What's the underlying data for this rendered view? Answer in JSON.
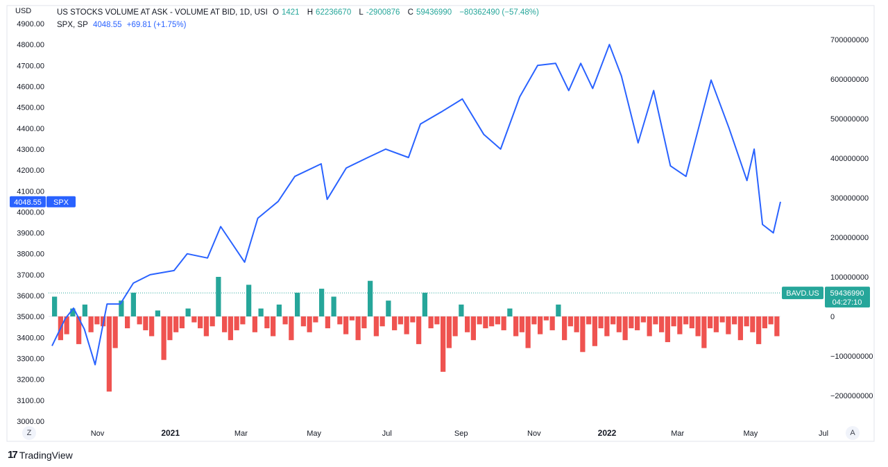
{
  "header": {
    "currency_label": "USD",
    "study_title": "US STOCKS VOLUME AT ASK - VOLUME AT BID, 1D, USI",
    "o_label": "O",
    "o_value": "1421",
    "h_label": "H",
    "h_value": "62236670",
    "l_label": "L",
    "l_value": "-2900876",
    "c_label": "C",
    "c_value": "59436990",
    "change": "−80362490 (−57.48%)",
    "spx_title": "SPX, SP",
    "spx_value": "4048.55",
    "spx_change": "+69.81 (+1.75%)"
  },
  "footer": {
    "brand": "TradingView",
    "left_button": "Z",
    "right_button": "A"
  },
  "colors": {
    "line": "#2962ff",
    "up": "#26a69a",
    "down": "#ef5350",
    "grid": "#f0f3fa"
  },
  "chart_data": {
    "type": "line",
    "x_tick_labels": [
      "Nov",
      "2021",
      "Mar",
      "May",
      "Jul",
      "Sep",
      "Nov",
      "2022",
      "Mar",
      "May",
      "Jul"
    ],
    "left_axis": {
      "ticks": [
        "4900.00",
        "4800.00",
        "4700.00",
        "4600.00",
        "4500.00",
        "4400.00",
        "4300.00",
        "4200.00",
        "4100.00",
        "4000.00",
        "3900.00",
        "3800.00",
        "3700.00",
        "3600.00",
        "3500.00",
        "3400.00",
        "3300.00",
        "3200.00",
        "3100.00",
        "3000.00"
      ],
      "range": [
        3000,
        4900
      ]
    },
    "right_axis": {
      "ticks": [
        "700000000",
        "600000000",
        "500000000",
        "400000000",
        "300000000",
        "200000000",
        "100000000",
        "0",
        "−100000000",
        "−200000000"
      ],
      "range": [
        -270000000,
        710000000
      ]
    },
    "x_range": [
      "2020-09-24",
      "2022-05-26"
    ],
    "spx_line": {
      "name": "SPX",
      "last_label": "4048.55",
      "dates": [
        "2020-09-24",
        "2020-10-05",
        "2020-10-12",
        "2020-10-21",
        "2020-10-30",
        "2020-11-09",
        "2020-11-20",
        "2020-12-01",
        "2020-12-15",
        "2021-01-04",
        "2021-01-15",
        "2021-02-01",
        "2021-02-12",
        "2021-03-04",
        "2021-03-15",
        "2021-04-01",
        "2021-04-15",
        "2021-05-07",
        "2021-05-12",
        "2021-05-28",
        "2021-06-15",
        "2021-06-30",
        "2021-07-19",
        "2021-07-29",
        "2021-08-16",
        "2021-09-02",
        "2021-09-20",
        "2021-10-04",
        "2021-10-20",
        "2021-11-04",
        "2021-11-19",
        "2021-11-30",
        "2021-12-10",
        "2021-12-20",
        "2022-01-03",
        "2022-01-13",
        "2022-01-27",
        "2022-02-09",
        "2022-02-23",
        "2022-03-08",
        "2022-03-29",
        "2022-04-13",
        "2022-04-28",
        "2022-05-04",
        "2022-05-11",
        "2022-05-20",
        "2022-05-26"
      ],
      "values": [
        3360,
        3490,
        3540,
        3440,
        3270,
        3560,
        3560,
        3660,
        3700,
        3720,
        3800,
        3780,
        3930,
        3760,
        3970,
        4050,
        4170,
        4230,
        4060,
        4210,
        4260,
        4300,
        4260,
        4420,
        4480,
        4540,
        4370,
        4300,
        4550,
        4700,
        4710,
        4580,
        4710,
        4590,
        4800,
        4650,
        4330,
        4580,
        4220,
        4170,
        4630,
        4400,
        4150,
        4300,
        3940,
        3900,
        4048.55
      ]
    },
    "volume_histogram": {
      "name": "BAVD.US",
      "last_label": "59436990",
      "countdown": "04:27:10",
      "y_step": 1000000,
      "y_first_bar_id": 1421,
      "bars": [
        50,
        -60,
        -45,
        20,
        -70,
        30,
        -40,
        -20,
        -25,
        -190,
        -80,
        40,
        -30,
        60,
        -20,
        -35,
        -50,
        15,
        -110,
        -60,
        -40,
        -30,
        20,
        -15,
        -30,
        -50,
        -25,
        100,
        -40,
        -60,
        -35,
        -20,
        80,
        -40,
        20,
        -30,
        -50,
        30,
        -20,
        -60,
        60,
        -25,
        -40,
        -15,
        70,
        -30,
        50,
        -20,
        -45,
        -10,
        -60,
        -30,
        90,
        -50,
        -25,
        40,
        -35,
        -20,
        -45,
        -15,
        -70,
        60,
        -30,
        -20,
        -140,
        -80,
        -50,
        30,
        -40,
        -60,
        -20,
        -30,
        -25,
        -20,
        -35,
        20,
        -50,
        -40,
        -80,
        -20,
        -45,
        -10,
        -35,
        30,
        -60,
        -25,
        -40,
        -90,
        -20,
        -75,
        -30,
        -50,
        -20,
        -40,
        -60,
        -30,
        -35,
        -15,
        -50,
        -20,
        -40,
        -65,
        -25,
        -45,
        -20,
        -30,
        -50,
        -80,
        -30,
        -40,
        -15,
        -45,
        -20,
        -60,
        -25,
        -40,
        -70,
        -30,
        -20,
        -50
      ]
    }
  }
}
